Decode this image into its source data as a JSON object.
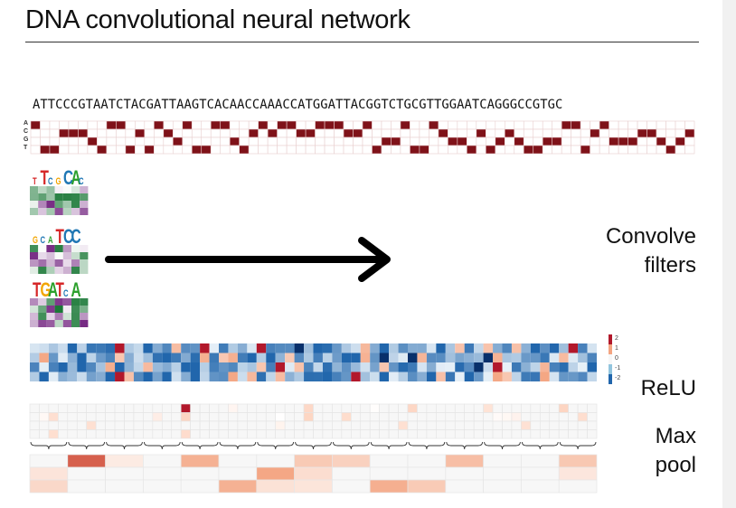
{
  "title": "DNA convolutional neural network",
  "sequence": "ATTCCCGTAATCTACGATTAAGTCACAACCAAACCATGGATTACGGTCTGCGTTGGAATCAGGGCCGTGC",
  "bases": [
    "A",
    "C",
    "G",
    "T"
  ],
  "colors": {
    "onehot": "#7f1219",
    "grid": "#e8cfcf",
    "arrow": "#000000",
    "heat_neg": "#2166ac",
    "heat_pos": "#b2182b",
    "filter_pos": "#1b7837",
    "filter_neg": "#762a83",
    "maxpool": "#d6604d"
  },
  "filters": [
    {
      "logo": "TTCGCAC",
      "logo_colors": [
        "#d62728",
        "#d62728",
        "#1f77b4",
        "#f2a500",
        "#1f77b4",
        "#2ca02c",
        "#1f77b4"
      ]
    },
    {
      "logo": "GCATCC",
      "logo_colors": [
        "#f2a500",
        "#1f77b4",
        "#2ca02c",
        "#d62728",
        "#1f77b4",
        "#1f77b4"
      ]
    },
    {
      "logo": "TGATCA",
      "logo_colors": [
        "#d62728",
        "#f2a500",
        "#2ca02c",
        "#d62728",
        "#1f77b4",
        "#2ca02c"
      ]
    }
  ],
  "labels": {
    "convolve": "Convolve",
    "filters": "filters",
    "relu": "ReLU",
    "max": "Max",
    "pool": "pool"
  },
  "colorbar_ticks": [
    "2",
    "1",
    "0",
    "-1",
    "-2"
  ]
}
